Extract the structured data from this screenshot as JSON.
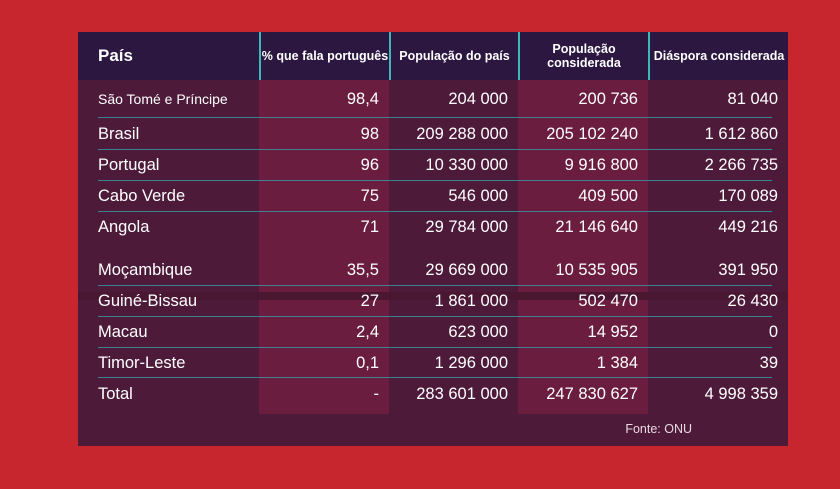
{
  "chart_data": {
    "type": "table",
    "columns": [
      "País",
      "% que fala português",
      "População do país",
      "População considerada",
      "Diáspora considerada"
    ],
    "rows": [
      [
        "São Tomé e Príncipe",
        "98,4",
        "204 000",
        "200 736",
        "81 040"
      ],
      [
        "Brasil",
        "98",
        "209 288 000",
        "205 102 240",
        "1 612 860"
      ],
      [
        "Portugal",
        "96",
        "10 330 000",
        "9 916 800",
        "2 266 735"
      ],
      [
        "Cabo Verde",
        "75",
        "546 000",
        "409 500",
        "170 089"
      ],
      [
        "Angola",
        "71",
        "29 784 000",
        "21 146 640",
        "449 216"
      ],
      [
        "Moçambique",
        "35,5",
        "29 669 000",
        "10 535 905",
        "391 950"
      ],
      [
        "Guiné-Bissau",
        "27",
        "1 861 000",
        "502 470",
        "26 430"
      ],
      [
        "Macau",
        "2,4",
        "623 000",
        "14 952",
        "0"
      ],
      [
        "Timor-Leste",
        "0,1",
        "1 296 000",
        "1 384",
        "39"
      ]
    ],
    "total": [
      "Total",
      "-",
      "283 601 000",
      "247 830 627",
      "4 998 359"
    ],
    "source": "Fonte: ONU"
  },
  "colors": {
    "background": "#c8262e",
    "panel": "#4d1a3a",
    "header": "#2b1740",
    "accent": "#3fb6b8"
  }
}
